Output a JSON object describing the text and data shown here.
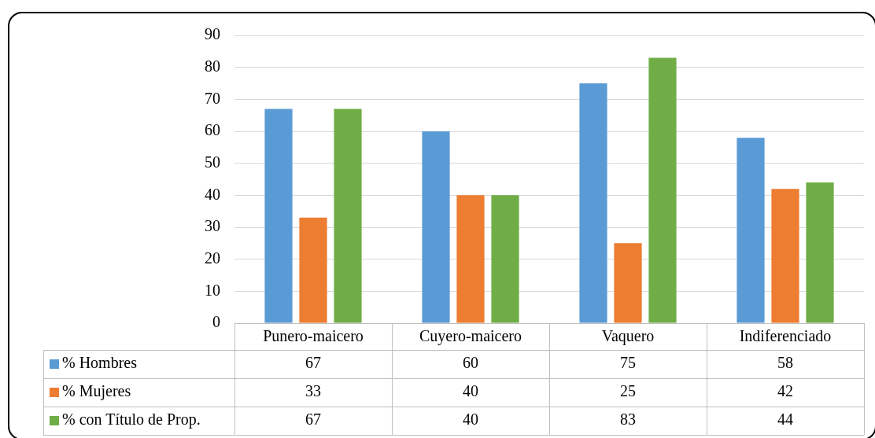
{
  "chart_data": {
    "type": "bar",
    "categories": [
      "Punero-maicero",
      "Cuyero-maicero",
      "Vaquero",
      "Indiferenciado"
    ],
    "series": [
      {
        "name": "% Hombres",
        "color": "#5b9bd5",
        "values": [
          67,
          60,
          75,
          58
        ]
      },
      {
        "name": "% Mujeres",
        "color": "#ed7d31",
        "values": [
          33,
          40,
          25,
          42
        ]
      },
      {
        "name": "% con Título de Prop.",
        "color": "#70ad47",
        "values": [
          67,
          40,
          83,
          44
        ]
      }
    ],
    "ylim": [
      0,
      90
    ],
    "yticks": [
      0,
      10,
      20,
      30,
      40,
      50,
      60,
      70,
      80,
      90
    ],
    "grid": "y",
    "legend": "bottom",
    "data_labels": true
  }
}
